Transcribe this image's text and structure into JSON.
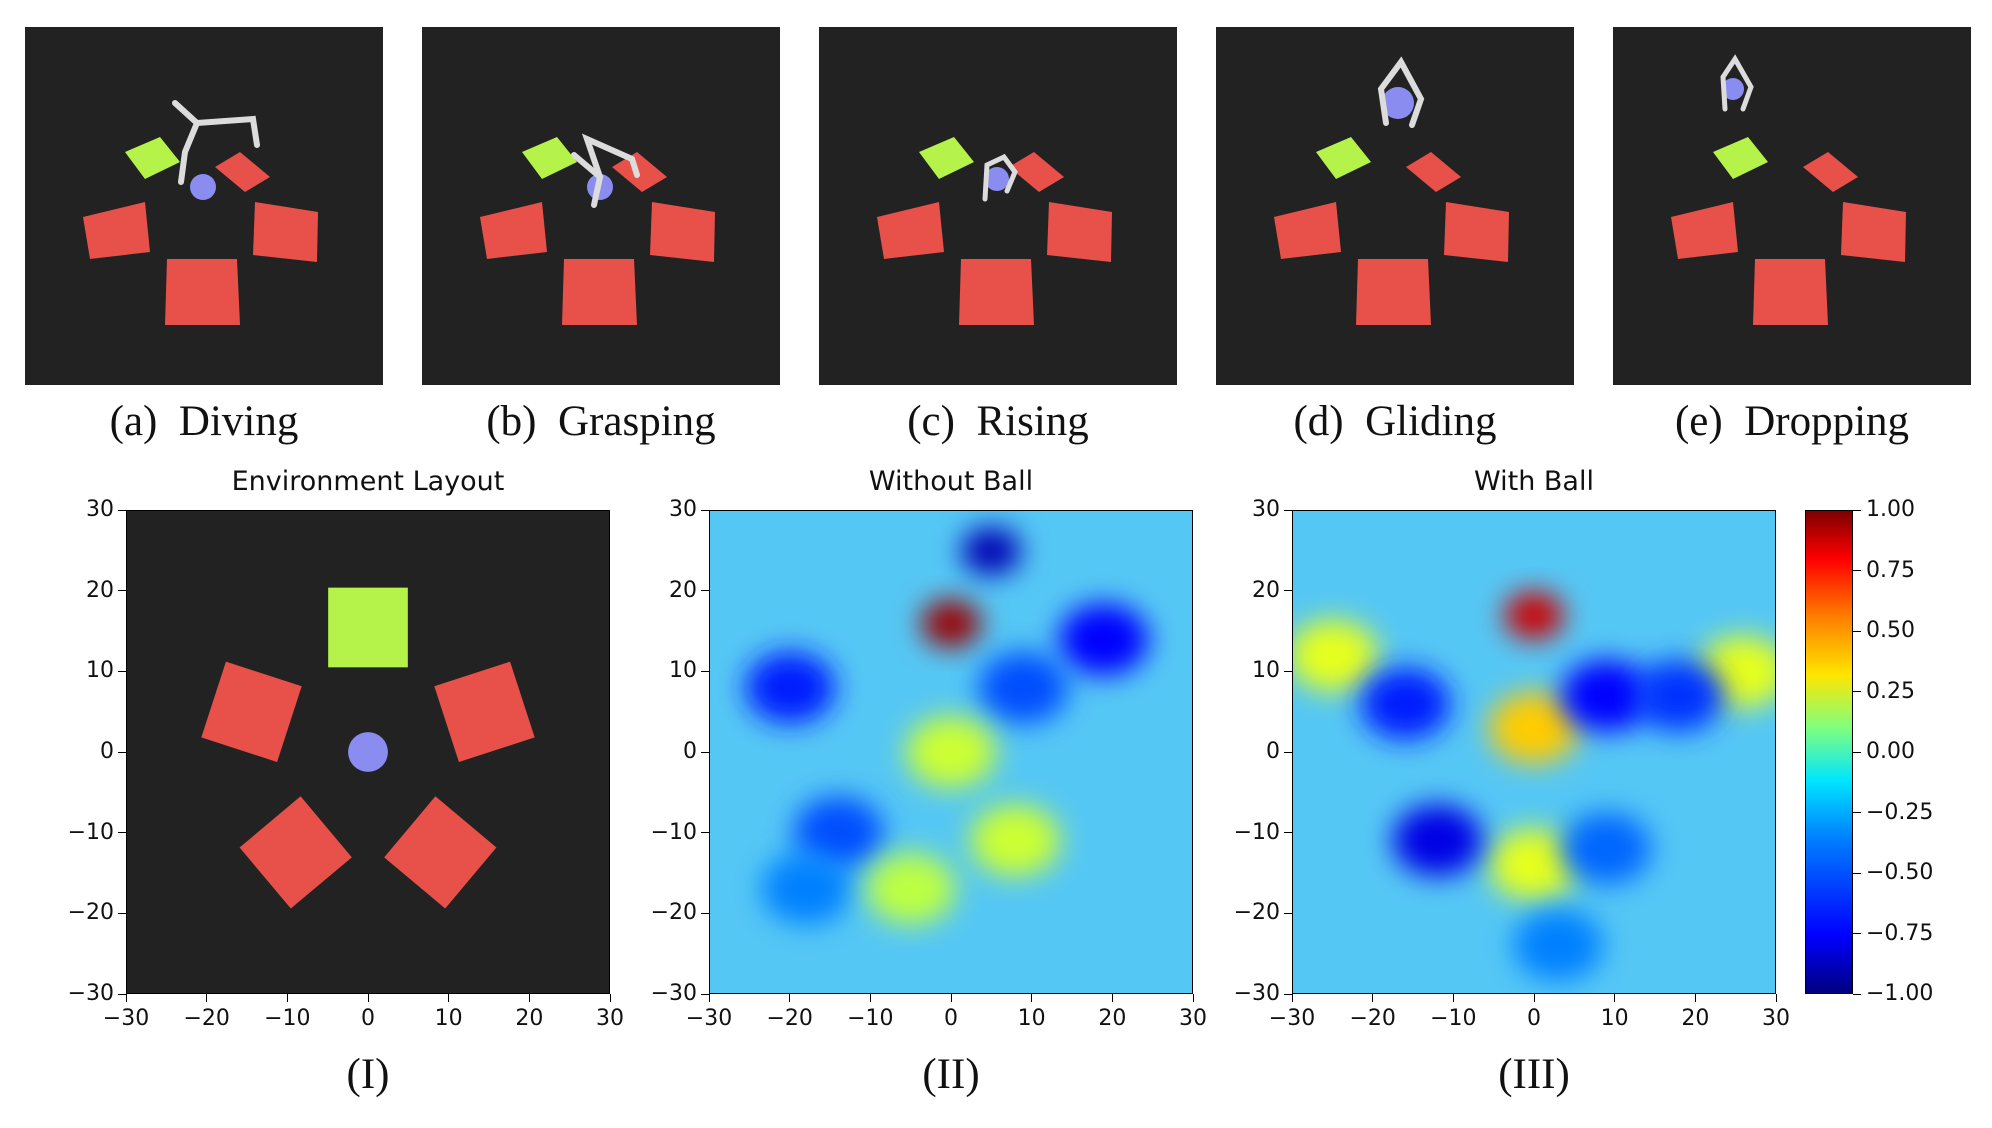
{
  "panels": [
    {
      "label": "(a)",
      "name": "Diving"
    },
    {
      "label": "(b)",
      "name": "Grasping"
    },
    {
      "label": "(c)",
      "name": "Rising"
    },
    {
      "label": "(d)",
      "name": "Gliding"
    },
    {
      "label": "(e)",
      "name": "Dropping"
    }
  ],
  "colors": {
    "background": "#222222",
    "target_pad": "#b5f24a",
    "pad": "#e8504a",
    "ball": "#8a8cf0",
    "gripper": "#dcdcdc"
  },
  "chart_data": [
    {
      "type": "scatter",
      "caption": "(I)",
      "title": "Environment Layout",
      "xlim": [
        -30,
        30
      ],
      "ylim": [
        -30,
        30
      ],
      "xticks": [
        "−30",
        "−20",
        "−10",
        "0",
        "10",
        "20",
        "30"
      ],
      "yticks": [
        "30",
        "20",
        "10",
        "0",
        "−10",
        "−20",
        "−30"
      ],
      "objects": [
        {
          "kind": "target-pad",
          "x": 0,
          "y": 15.5,
          "color": "#b5f24a"
        },
        {
          "kind": "pad",
          "x": -14.5,
          "y": 5,
          "color": "#e8504a"
        },
        {
          "kind": "pad",
          "x": 14.5,
          "y": 5,
          "color": "#e8504a"
        },
        {
          "kind": "pad",
          "x": -9,
          "y": -12.5,
          "color": "#e8504a"
        },
        {
          "kind": "pad",
          "x": 9,
          "y": -12.5,
          "color": "#e8504a"
        },
        {
          "kind": "ball",
          "x": 0,
          "y": 0,
          "color": "#8a8cf0"
        }
      ]
    },
    {
      "type": "heatmap",
      "caption": "(II)",
      "title": "Without Ball",
      "xlim": [
        -30,
        30
      ],
      "ylim": [
        -30,
        30
      ],
      "xticks": [
        "−30",
        "−20",
        "−10",
        "0",
        "10",
        "20",
        "30"
      ],
      "yticks": [
        "30",
        "20",
        "10",
        "0",
        "−10",
        "−20",
        "−30"
      ],
      "hotspots": [
        {
          "x": 0,
          "y": 16,
          "value": 0.95
        },
        {
          "x": 5,
          "y": 25,
          "value": -0.9
        },
        {
          "x": 19,
          "y": 14,
          "value": -0.75
        },
        {
          "x": -20,
          "y": 8,
          "value": -0.7
        },
        {
          "x": 9,
          "y": 8,
          "value": -0.6
        },
        {
          "x": -14,
          "y": -10,
          "value": -0.6
        },
        {
          "x": -18,
          "y": -17,
          "value": -0.5
        },
        {
          "x": 0,
          "y": 0,
          "value": 0.15
        },
        {
          "x": 8,
          "y": -11,
          "value": 0.15
        },
        {
          "x": -5,
          "y": -17,
          "value": 0.12
        }
      ]
    },
    {
      "type": "heatmap",
      "caption": "(III)",
      "title": "With Ball",
      "xlim": [
        -30,
        30
      ],
      "ylim": [
        -30,
        30
      ],
      "xticks": [
        "−30",
        "−20",
        "−10",
        "0",
        "10",
        "20",
        "30"
      ],
      "yticks": [
        "30",
        "20",
        "10",
        "0",
        "−10",
        "−20",
        "−30"
      ],
      "hotspots": [
        {
          "x": 0,
          "y": 17,
          "value": 0.85
        },
        {
          "x": 0,
          "y": 3,
          "value": 0.35
        },
        {
          "x": 0,
          "y": -14,
          "value": 0.2
        },
        {
          "x": -25,
          "y": 12,
          "value": 0.2
        },
        {
          "x": 26,
          "y": 10,
          "value": 0.2
        },
        {
          "x": -16,
          "y": 6,
          "value": -0.7
        },
        {
          "x": 9,
          "y": 7,
          "value": -0.75
        },
        {
          "x": 18,
          "y": 7,
          "value": -0.65
        },
        {
          "x": -12,
          "y": -11,
          "value": -0.8
        },
        {
          "x": 9,
          "y": -12,
          "value": -0.55
        },
        {
          "x": 3,
          "y": -24,
          "value": -0.5
        }
      ]
    }
  ],
  "colorbar": {
    "range": [
      -1,
      1
    ],
    "colormap": "jet",
    "ticks": [
      "1.00",
      "0.75",
      "0.50",
      "0.25",
      "0.00",
      "−0.25",
      "−0.50",
      "−0.75",
      "−1.00"
    ]
  }
}
